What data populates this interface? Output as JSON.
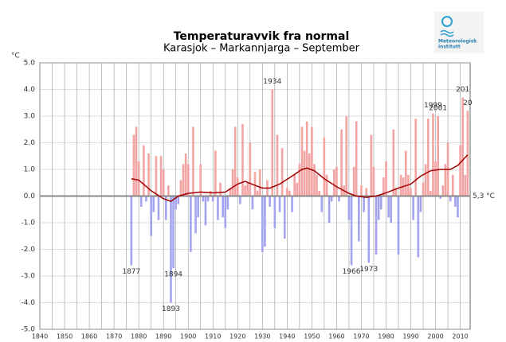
{
  "chart_data": {
    "type": "bar",
    "title": "Temperaturavvik fra normal",
    "subtitle": "Karasjok – Markannjarga – September",
    "y_unit": "°C",
    "baseline_label": "5,3 °C",
    "logo": {
      "line1": "Meteorologisk",
      "line2": "institutt"
    },
    "x": [
      1877,
      1878,
      1879,
      1880,
      1881,
      1882,
      1883,
      1884,
      1885,
      1886,
      1887,
      1888,
      1889,
      1890,
      1891,
      1892,
      1893,
      1894,
      1895,
      1896,
      1897,
      1898,
      1899,
      1900,
      1901,
      1902,
      1903,
      1904,
      1905,
      1906,
      1907,
      1908,
      1909,
      1910,
      1911,
      1912,
      1913,
      1914,
      1915,
      1916,
      1917,
      1918,
      1919,
      1920,
      1921,
      1922,
      1923,
      1924,
      1925,
      1926,
      1927,
      1928,
      1929,
      1930,
      1931,
      1932,
      1933,
      1934,
      1935,
      1936,
      1937,
      1938,
      1939,
      1940,
      1941,
      1942,
      1943,
      1944,
      1945,
      1946,
      1947,
      1948,
      1949,
      1950,
      1951,
      1952,
      1953,
      1954,
      1955,
      1956,
      1957,
      1958,
      1959,
      1960,
      1961,
      1962,
      1963,
      1964,
      1965,
      1966,
      1967,
      1968,
      1969,
      1970,
      1971,
      1972,
      1973,
      1974,
      1975,
      1976,
      1977,
      1978,
      1979,
      1980,
      1981,
      1982,
      1983,
      1984,
      1985,
      1986,
      1987,
      1988,
      1989,
      1990,
      1991,
      1992,
      1993,
      1994,
      1995,
      1996,
      1997,
      1998,
      1999,
      2000,
      2001,
      2002,
      2003,
      2004,
      2005,
      2006,
      2007,
      2008,
      2009,
      2010,
      2011,
      2012,
      2013
    ],
    "values": [
      -2.6,
      2.3,
      2.6,
      1.3,
      -0.4,
      1.9,
      -0.2,
      1.6,
      -1.5,
      -0.6,
      1.5,
      -0.9,
      1.5,
      1.0,
      -0.9,
      0.4,
      -4.0,
      -2.7,
      -0.5,
      -0.3,
      0.6,
      1.2,
      1.6,
      1.2,
      -2.1,
      2.6,
      -1.4,
      -0.8,
      1.2,
      -0.2,
      -1.1,
      -0.2,
      0.2,
      -0.2,
      1.7,
      -0.9,
      0.5,
      -0.8,
      -1.2,
      -0.5,
      0.3,
      1.0,
      2.6,
      0.7,
      -0.3,
      2.7,
      0.4,
      0.5,
      2.0,
      -0.5,
      0.9,
      0.2,
      1.0,
      -2.1,
      -1.9,
      0.6,
      -0.4,
      4.0,
      -1.2,
      2.3,
      -0.6,
      1.8,
      -1.6,
      0.3,
      0.2,
      -0.6,
      0.8,
      0.5,
      1.2,
      2.6,
      1.7,
      2.8,
      1.6,
      2.6,
      1.2,
      0.8,
      0.2,
      -0.6,
      2.2,
      0.8,
      -1.0,
      -0.2,
      1.0,
      1.1,
      -0.2,
      2.5,
      0.4,
      3.0,
      -0.9,
      -2.6,
      1.1,
      2.8,
      -1.7,
      0.4,
      -0.6,
      0.3,
      -2.5,
      2.3,
      1.1,
      -2.2,
      -0.9,
      -0.5,
      0.7,
      1.3,
      -0.8,
      -1.0,
      2.5,
      0.3,
      -2.2,
      0.8,
      0.7,
      1.7,
      0.8,
      0.3,
      -0.9,
      2.9,
      -2.3,
      -0.6,
      0.5,
      1.2,
      2.9,
      0.2,
      3.1,
      1.3,
      3.0,
      -0.1,
      0.4,
      1.2,
      2.0,
      -0.2,
      0.8,
      -0.4,
      -0.8,
      1.9,
      3.7,
      0.8,
      3.2
    ],
    "positive_color": "#f4a3a3",
    "negative_color": "#a3a3f0",
    "smooth": {
      "color": "#a00000",
      "x": [
        1877,
        1880,
        1885,
        1890,
        1893,
        1896,
        1900,
        1905,
        1910,
        1915,
        1920,
        1923,
        1927,
        1930,
        1933,
        1937,
        1942,
        1946,
        1948,
        1951,
        1955,
        1960,
        1965,
        1968,
        1972,
        1976,
        1980,
        1985,
        1990,
        1994,
        1998,
        2002,
        2006,
        2009,
        2013
      ],
      "values": [
        0.65,
        0.6,
        0.2,
        -0.1,
        -0.2,
        0,
        0.1,
        0.15,
        0.12,
        0.15,
        0.45,
        0.55,
        0.4,
        0.3,
        0.3,
        0.45,
        0.75,
        1.0,
        1.05,
        0.95,
        0.65,
        0.35,
        0.1,
        0.0,
        -0.05,
        0.0,
        0.12,
        0.3,
        0.45,
        0.75,
        0.95,
        1.0,
        1.0,
        1.15,
        1.55
      ]
    },
    "annotations": [
      {
        "text": "1877",
        "x": 1877
      },
      {
        "text": "1893",
        "x": 1893
      },
      {
        "text": "1894",
        "x": 1894
      },
      {
        "text": "1934",
        "x": 1934
      },
      {
        "text": "1966",
        "x": 1966
      },
      {
        "text": "1973",
        "x": 1973
      },
      {
        "text": "1999",
        "x": 1999
      },
      {
        "text": "2001",
        "x": 2001
      },
      {
        "text": "201",
        "x": 2011
      },
      {
        "text": "20",
        "x": 2013
      }
    ],
    "xlim": [
      1840,
      2014
    ],
    "xticks": [
      1840,
      1850,
      1860,
      1870,
      1880,
      1890,
      1900,
      1910,
      1920,
      1930,
      1940,
      1950,
      1960,
      1970,
      1980,
      1990,
      2000,
      2010
    ],
    "x_minor_ticks": [
      1845,
      1855,
      1865,
      1875,
      1885,
      1895,
      1905,
      1915,
      1925,
      1935,
      1945,
      1955,
      1965,
      1975,
      1985,
      1995,
      2005
    ],
    "ylim": [
      -5,
      5
    ],
    "yticks": [
      {
        "value": -5,
        "label": "-5.0"
      },
      {
        "value": -4,
        "label": "-4.0"
      },
      {
        "value": -3,
        "label": "-3.0"
      },
      {
        "value": -2,
        "label": "-2.0"
      },
      {
        "value": -1,
        "label": "-1.0"
      },
      {
        "value": 0,
        "label": "0.0"
      },
      {
        "value": 1,
        "label": "1.0"
      },
      {
        "value": 2,
        "label": "2.0"
      },
      {
        "value": 3,
        "label": "3.0"
      },
      {
        "value": 4,
        "label": "4.0"
      },
      {
        "value": 5,
        "label": "5.0"
      }
    ],
    "grid": true
  }
}
